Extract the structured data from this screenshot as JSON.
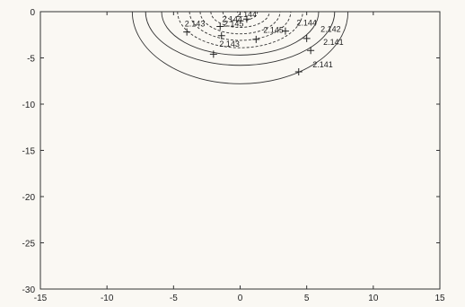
{
  "chart_data": {
    "type": "contour",
    "title": "",
    "xlabel": "",
    "ylabel": "",
    "xlim": [
      -15,
      15
    ],
    "ylim": [
      -30,
      0
    ],
    "x_ticks": [
      -15,
      -10,
      -5,
      0,
      5,
      10,
      15
    ],
    "y_ticks": [
      0,
      -5,
      -10,
      -15,
      -20,
      -25,
      -30
    ],
    "x_tick_labels": [
      "-15",
      "-10",
      "-5",
      "0",
      "5",
      "10",
      "15"
    ],
    "y_tick_labels": [
      "0",
      "-5",
      "-10",
      "-15",
      "-20",
      "-25",
      "-30"
    ],
    "grid": false,
    "center": [
      0,
      0
    ],
    "contours": [
      {
        "radius_x": 1.3,
        "radius_y": 1.0,
        "style": "dashed"
      },
      {
        "radius_x": 2.2,
        "radius_y": 1.7,
        "style": "dashed"
      },
      {
        "radius_x": 3.0,
        "radius_y": 2.4,
        "style": "dashed"
      },
      {
        "radius_x": 3.8,
        "radius_y": 3.1,
        "style": "dashed"
      },
      {
        "radius_x": 4.7,
        "radius_y": 3.9,
        "style": "dashed"
      },
      {
        "radius_x": 5.9,
        "radius_y": 4.7,
        "style": "solid"
      },
      {
        "radius_x": 7.1,
        "radius_y": 5.8,
        "style": "solid"
      },
      {
        "radius_x": 8.1,
        "radius_y": 7.8,
        "style": "solid"
      }
    ],
    "labels": [
      {
        "text": "2.144",
        "x": 0.5,
        "y": -0.6
      },
      {
        "text": "2.144",
        "x": -0.6,
        "y": -1.1
      },
      {
        "text": "2.145",
        "x": -0.5,
        "y": -1.6
      },
      {
        "text": "2.143",
        "x": -3.4,
        "y": -1.6
      },
      {
        "text": "2.144",
        "x": 5.0,
        "y": -1.5
      },
      {
        "text": "2.145",
        "x": 2.5,
        "y": -2.3
      },
      {
        "text": "2.142",
        "x": 6.8,
        "y": -2.2
      },
      {
        "text": "2.141",
        "x": 7.0,
        "y": -3.6
      },
      {
        "text": "2.143",
        "x": -0.8,
        "y": -3.8
      },
      {
        "text": "2.141",
        "x": 6.2,
        "y": -6.0
      }
    ],
    "markers": [
      {
        "x": 0.5,
        "y": -0.8
      },
      {
        "x": -1.5,
        "y": -1.6
      },
      {
        "x": -4.0,
        "y": -2.2
      },
      {
        "x": -1.4,
        "y": -2.6
      },
      {
        "x": 1.2,
        "y": -3.0
      },
      {
        "x": 3.4,
        "y": -2.1
      },
      {
        "x": 5.0,
        "y": -2.9
      },
      {
        "x": 5.3,
        "y": -4.2
      },
      {
        "x": -2.0,
        "y": -4.6
      },
      {
        "x": 4.4,
        "y": -6.5
      }
    ]
  }
}
